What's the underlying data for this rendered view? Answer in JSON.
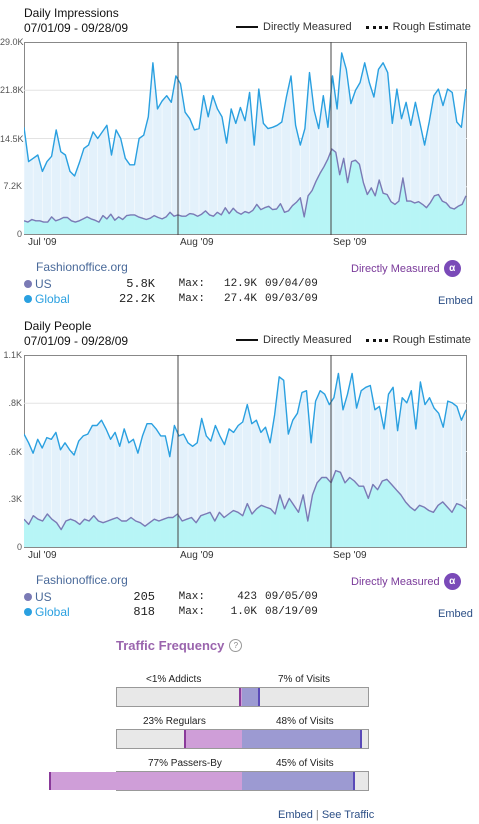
{
  "chart_data": [
    {
      "type": "line",
      "title": "Daily Impressions",
      "date_range": "07/01/09 - 09/28/09",
      "legend": [
        "Directly Measured",
        "Rough Estimate"
      ],
      "y_ticks": [
        "29.0K",
        "21.8K",
        "14.5K",
        "7.2K",
        "0"
      ],
      "ylim": [
        0,
        29000
      ],
      "x_ticks": [
        "Jul '09",
        "Aug '09",
        "Sep '09"
      ],
      "series": [
        {
          "name": "Global",
          "color": "#2aa0e0",
          "values": [
            16200,
            11000,
            11500,
            12000,
            9500,
            11000,
            11800,
            15800,
            12500,
            12000,
            9500,
            8800,
            10800,
            13000,
            13500,
            15500,
            14500,
            15500,
            16500,
            12000,
            15800,
            14500,
            11500,
            10500,
            10500,
            14500,
            15000,
            17800,
            26000,
            19000,
            20200,
            21000,
            20000,
            24000,
            22800,
            18500,
            17500,
            15800,
            16000,
            21000,
            17800,
            21000,
            19000,
            17800,
            13800,
            19000,
            16800,
            19200,
            17200,
            21500,
            13500,
            22000,
            16800,
            16000,
            16200,
            16500,
            17000,
            20800,
            24000,
            16500,
            13500,
            16000,
            24500,
            18800,
            16000,
            21000,
            16200,
            24000,
            19000,
            27500,
            25000,
            19800,
            21800,
            23000,
            26000,
            23000,
            20800,
            25000,
            26000,
            24500,
            16800,
            22000,
            17500,
            20000,
            16500,
            20000,
            16800,
            13500,
            17000,
            21000,
            22000,
            19500,
            22000,
            21500,
            17000,
            16200,
            22000
          ]
        },
        {
          "name": "US",
          "color": "#7a7ab5",
          "values": [
            2000,
            1800,
            2200,
            2000,
            2000,
            1800,
            1800,
            2600,
            2000,
            2200,
            2500,
            2500,
            2000,
            1800,
            2000,
            2300,
            2600,
            2300,
            2100,
            1800,
            2800,
            2300,
            3000,
            2100,
            2600,
            2200,
            2800,
            2900,
            2900,
            2600,
            2400,
            2200,
            2400,
            2800,
            2500,
            2300,
            2600,
            3300,
            2700,
            2900,
            2700,
            2700,
            3100,
            3000,
            2700,
            3000,
            3500,
            2900,
            2700,
            3300,
            2900,
            4000,
            3100,
            3900,
            3300,
            3000,
            3400,
            3200,
            3600,
            4500,
            3700,
            4000,
            4200,
            3700,
            3800,
            4600,
            3300,
            3500,
            4300,
            4800,
            5500,
            2600,
            5800,
            6600,
            8000,
            9200,
            10200,
            11400,
            12900,
            12400,
            9000,
            11500,
            7800,
            11000,
            11200,
            10600,
            7800,
            6000,
            7000,
            5800,
            8200,
            6200,
            6000,
            4900,
            4500,
            5000,
            8500,
            5000,
            5000,
            4700,
            4900,
            4500,
            4000,
            4800,
            5800,
            6000,
            5000,
            4700,
            4000,
            3800,
            4200,
            4500,
            5800
          ]
        }
      ]
    },
    {
      "type": "line",
      "title": "Daily People",
      "date_range": "07/01/09 - 09/28/09",
      "legend": [
        "Directly Measured",
        "Rough Estimate"
      ],
      "y_ticks": [
        "1.1K",
        ".8K",
        ".6K",
        ".3K",
        "0"
      ],
      "ylim": [
        0,
        1100
      ],
      "x_ticks": [
        "Jul '09",
        "Aug '09",
        "Sep '09"
      ],
      "series": [
        {
          "name": "Global",
          "color": "#2aa0e0",
          "values": [
            650,
            600,
            540,
            620,
            570,
            630,
            620,
            660,
            560,
            600,
            560,
            530,
            610,
            640,
            650,
            700,
            700,
            730,
            680,
            620,
            660,
            580,
            680,
            600,
            620,
            540,
            640,
            710,
            710,
            680,
            640,
            640,
            520,
            700,
            640,
            650,
            600,
            580,
            600,
            740,
            640,
            610,
            700,
            640,
            590,
            680,
            660,
            700,
            720,
            820,
            710,
            730,
            660,
            690,
            600,
            760,
            980,
            960,
            650,
            730,
            770,
            890,
            900,
            600,
            840,
            900,
            880,
            820,
            860,
            1000,
            790,
            880,
            1000,
            800,
            900,
            920,
            930,
            790,
            810,
            680,
            880,
            920,
            670,
            860,
            830,
            900,
            680,
            950,
            820,
            860,
            800,
            770,
            690,
            840,
            830,
            810,
            730,
            790
          ]
        },
        {
          "name": "US",
          "color": "#7a7ab5",
          "values": [
            160,
            130,
            180,
            160,
            150,
            190,
            160,
            140,
            100,
            150,
            160,
            150,
            130,
            160,
            150,
            180,
            150,
            140,
            150,
            160,
            170,
            150,
            150,
            170,
            150,
            140,
            120,
            140,
            160,
            150,
            160,
            170,
            170,
            190,
            150,
            160,
            170,
            140,
            180,
            190,
            200,
            150,
            200,
            170,
            190,
            210,
            200,
            180,
            250,
            190,
            220,
            240,
            230,
            220,
            190,
            300,
            220,
            280,
            240,
            200,
            300,
            150,
            300,
            370,
            400,
            400,
            370,
            440,
            430,
            370,
            400,
            380,
            350,
            350,
            280,
            360,
            330,
            380,
            390,
            360,
            330,
            300,
            260,
            230,
            210,
            240,
            230,
            210,
            200,
            240,
            260,
            230,
            200,
            250,
            240,
            220
          ]
        }
      ]
    }
  ],
  "impressions": {
    "site": "Fashionoffice.org",
    "directly_measured": "Directly Measured",
    "us": {
      "label": "US",
      "value": "5.8K",
      "max_label": "Max:",
      "max": "12.9K",
      "max_date": "09/04/09"
    },
    "global": {
      "label": "Global",
      "value": "22.2K",
      "max_label": "Max:",
      "max": "27.4K",
      "max_date": "09/03/09"
    },
    "embed": "Embed"
  },
  "people": {
    "site": "Fashionoffice.org",
    "directly_measured": "Directly Measured",
    "us": {
      "label": "US",
      "value": "205",
      "max_label": "Max:",
      "max": "423",
      "max_date": "09/05/09"
    },
    "global": {
      "label": "Global",
      "value": "818",
      "max_label": "Max:",
      "max": "1.0K",
      "max_date": "08/19/09"
    },
    "embed": "Embed"
  },
  "traffic_frequency": {
    "title": "Traffic Frequency",
    "help": "?",
    "rows": [
      {
        "group": "<1% Addicts",
        "visits": "7% of Visits",
        "people_pct": 1,
        "visits_pct": 7
      },
      {
        "group": "23% Regulars",
        "visits": "48% of Visits",
        "people_pct": 23,
        "visits_pct": 48
      },
      {
        "group": "77% Passers-By",
        "visits": "45% of Visits",
        "people_pct": 77,
        "visits_pct": 45
      }
    ],
    "embed": "Embed",
    "separator": "|",
    "see_traffic": "See Traffic"
  },
  "colors": {
    "global": "#2aa0e0",
    "us": "#7a7ab5",
    "people_fill": "#cf9ed8",
    "visits_fill": "#9c9ad2",
    "accent": "#7a3a9a"
  }
}
